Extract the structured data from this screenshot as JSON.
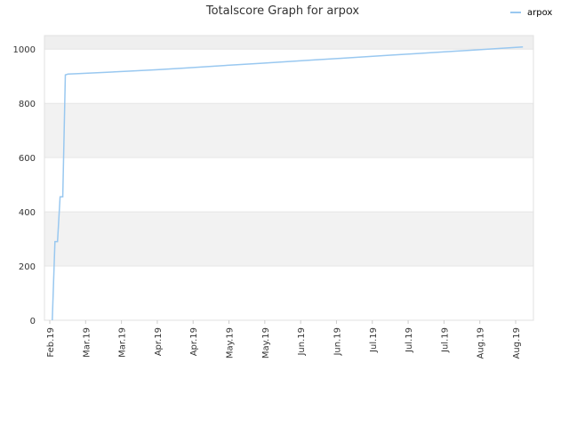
{
  "chart_data": {
    "type": "line",
    "title": "Totalscore Graph for arpox",
    "xlabel": "",
    "ylabel": "",
    "ylim": [
      0,
      1050
    ],
    "yticks": [
      0,
      200,
      400,
      600,
      800,
      1000
    ],
    "xticks": [
      "Feb.19",
      "Mar.19",
      "Mar.19",
      "Apr.19",
      "Apr.19",
      "May.19",
      "May.19",
      "Jun.19",
      "Jun.19",
      "Jul.19",
      "Jul.19",
      "Jul.19",
      "Aug.19",
      "Aug.19"
    ],
    "grid": true,
    "legend_position": "top-right",
    "series": [
      {
        "name": "arpox",
        "color": "#99c8f0",
        "x": [
          0,
          1,
          2,
          3,
          4,
          5,
          6,
          10,
          20,
          30,
          40,
          50,
          60,
          70,
          80,
          90,
          100,
          110,
          120,
          130,
          140,
          150,
          160,
          170,
          180
        ],
        "y": [
          0,
          290,
          290,
          455,
          455,
          905,
          908,
          910,
          914,
          919,
          924,
          930,
          936,
          942,
          948,
          954,
          960,
          966,
          972,
          978,
          984,
          990,
          996,
          1002,
          1008
        ]
      }
    ]
  }
}
